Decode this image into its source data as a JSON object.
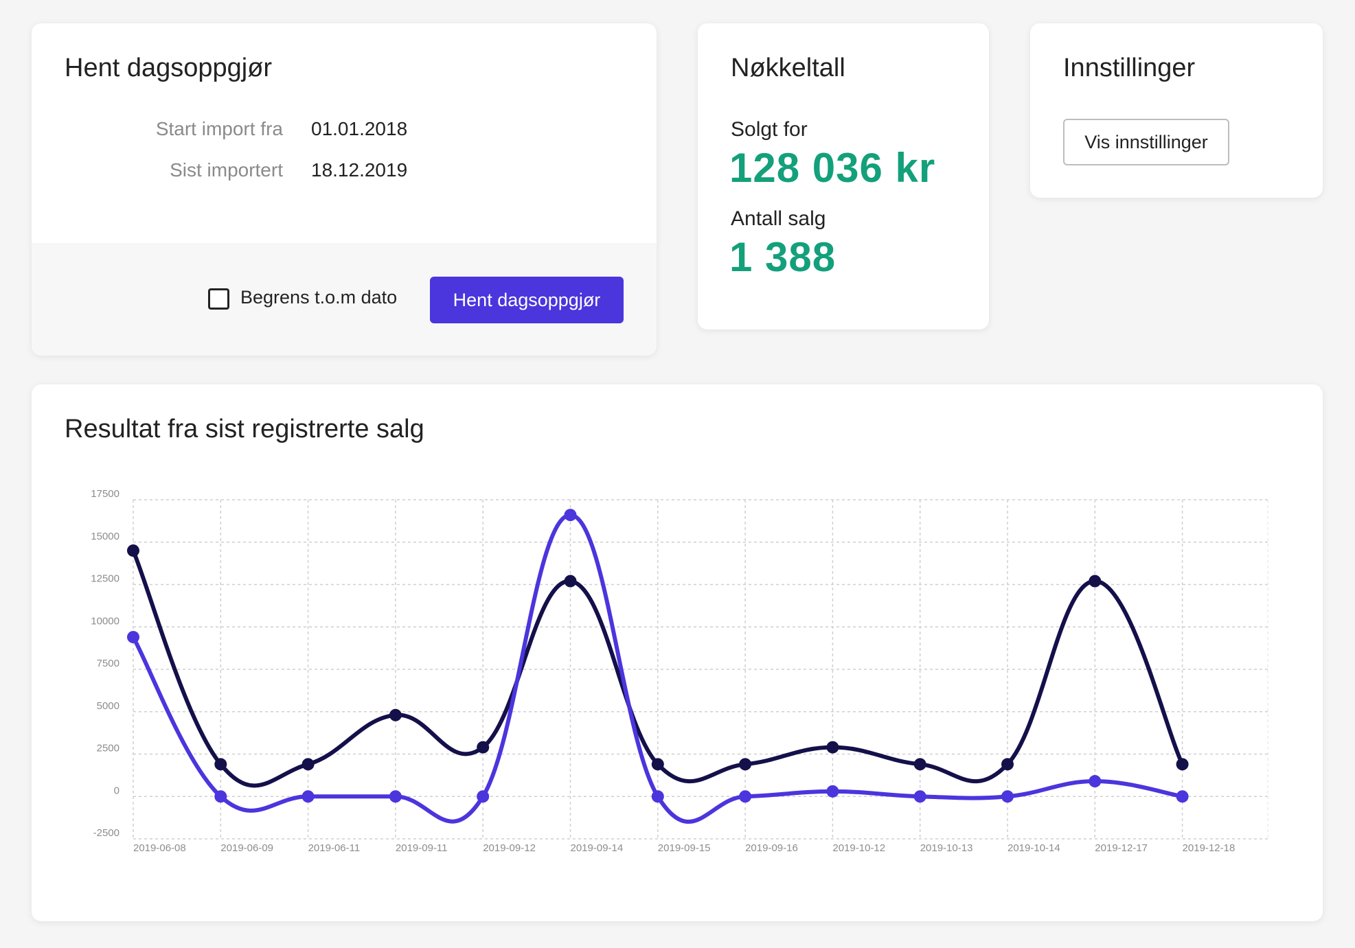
{
  "import_card": {
    "title": "Hent dagsoppgjør",
    "rows": [
      {
        "label": "Start import fra",
        "value": "01.01.2018"
      },
      {
        "label": "Sist importert",
        "value": "18.12.2019"
      }
    ],
    "checkbox_label": "Begrens t.o.m dato",
    "checkbox_checked": false,
    "button_label": "Hent dagsoppgjør"
  },
  "key_card": {
    "title": "Nøkkeltall",
    "sold_label": "Solgt for",
    "sold_value": "128 036 kr",
    "count_label": "Antall salg",
    "count_value": "1 388"
  },
  "settings_card": {
    "title": "Innstillinger",
    "button_label": "Vis innstillinger"
  },
  "chart_card": {
    "title": "Resultat fra sist registrerte salg"
  },
  "colors": {
    "accent": "#4b35dd",
    "dark_series": "#14104a",
    "kpi_green": "#13a07a"
  },
  "chart_data": {
    "type": "line",
    "title": "",
    "xlabel": "",
    "ylabel": "",
    "ylim": [
      -2500,
      17500
    ],
    "yticks": [
      "17500",
      "15000",
      "12500",
      "10000",
      "7500",
      "5000",
      "2500",
      "0",
      "-2500"
    ],
    "x": [
      "2019-06-08",
      "2019-06-09",
      "2019-06-11",
      "2019-09-11",
      "2019-09-12",
      "2019-09-14",
      "2019-09-15",
      "2019-09-16",
      "2019-10-12",
      "2019-10-13",
      "2019-10-14",
      "2019-12-17",
      "2019-12-18"
    ],
    "grid": true,
    "legend": "none",
    "series": [
      {
        "values": [
          14500,
          1900,
          1900,
          4800,
          2900,
          12700,
          1900,
          1900,
          2900,
          1900,
          1900,
          12700,
          1900
        ],
        "color": "#14104a"
      },
      {
        "values": [
          9400,
          0,
          0,
          0,
          0,
          16600,
          0,
          0,
          300,
          0,
          0,
          900,
          0
        ],
        "color": "#4b35dd"
      }
    ]
  }
}
